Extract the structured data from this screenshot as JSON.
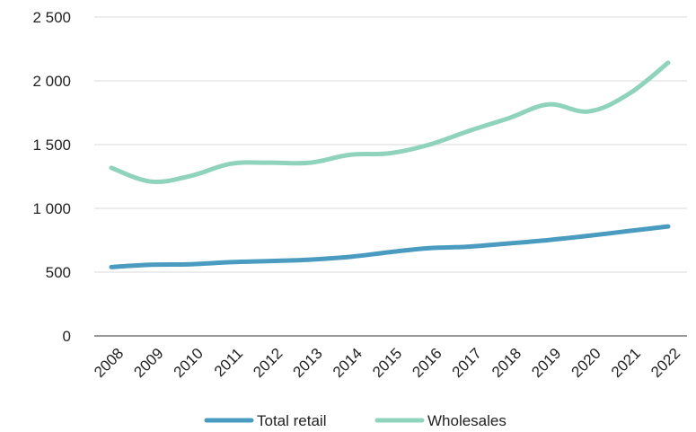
{
  "chart_data": {
    "type": "line",
    "title": "",
    "xlabel": "",
    "ylabel": "",
    "categories": [
      "2008",
      "2009",
      "2010",
      "2011",
      "2012",
      "2013",
      "2014",
      "2015",
      "2016",
      "2017",
      "2018",
      "2019",
      "2020",
      "2021",
      "2022"
    ],
    "y_ticks": [
      0,
      500,
      1000,
      1500,
      2000,
      2500
    ],
    "y_tick_labels": [
      "0",
      "500",
      "1 000",
      "1 500",
      "2 000",
      "2 500"
    ],
    "ylim": [
      0,
      2500
    ],
    "grid": true,
    "legend_position": "bottom",
    "series": [
      {
        "name": "Total retail",
        "color": "#4a9bc0",
        "values": [
          540,
          558,
          562,
          578,
          587,
          598,
          620,
          657,
          688,
          700,
          725,
          752,
          785,
          822,
          858
        ]
      },
      {
        "name": "Wholesales",
        "color": "#8fd3bd",
        "values": [
          1318,
          1210,
          1255,
          1350,
          1358,
          1358,
          1420,
          1432,
          1500,
          1608,
          1708,
          1815,
          1760,
          1895,
          2142
        ]
      }
    ]
  }
}
